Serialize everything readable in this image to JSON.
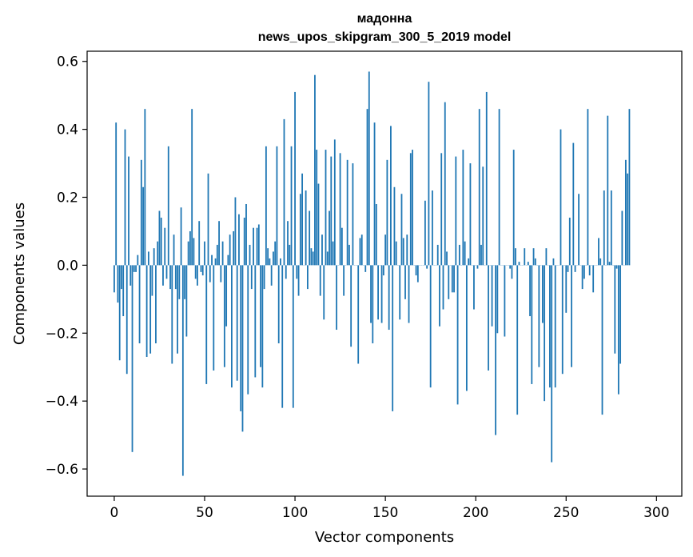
{
  "chart_data": {
    "type": "bar",
    "title": "мадонна",
    "subtitle": "news_upos_skipgram_300_5_2019 model",
    "xlabel": "Vector components",
    "ylabel": "Components values",
    "xlim": [
      -15,
      314
    ],
    "ylim": [
      -0.68,
      0.63
    ],
    "xticks": [
      0,
      50,
      100,
      150,
      200,
      250,
      300
    ],
    "yticks": [
      -0.6,
      -0.4,
      -0.2,
      0.0,
      0.2,
      0.4,
      0.6
    ],
    "xtick_labels": [
      "0",
      "50",
      "100",
      "150",
      "200",
      "250",
      "300"
    ],
    "ytick_labels": [
      "−0.6",
      "−0.4",
      "−0.2",
      "0.0",
      "0.2",
      "0.4",
      "0.6"
    ],
    "bar_color": "#1f77b4",
    "grid": false,
    "legend": "none",
    "values": [
      -0.08,
      0.42,
      -0.11,
      -0.28,
      -0.07,
      -0.15,
      0.4,
      -0.32,
      0.32,
      -0.06,
      -0.55,
      -0.02,
      -0.02,
      0.03,
      -0.23,
      0.31,
      0.23,
      0.46,
      -0.27,
      0.04,
      -0.26,
      -0.09,
      0.05,
      -0.23,
      0.07,
      0.16,
      0.14,
      -0.06,
      0.11,
      -0.04,
      0.35,
      -0.07,
      -0.29,
      0.09,
      -0.07,
      -0.26,
      -0.1,
      0.17,
      -0.62,
      -0.1,
      -0.21,
      0.07,
      0.1,
      0.46,
      0.08,
      -0.04,
      -0.06,
      0.13,
      -0.02,
      -0.03,
      0.07,
      -0.35,
      0.27,
      -0.05,
      0.03,
      -0.31,
      0.02,
      0.06,
      0.13,
      -0.05,
      0.07,
      -0.3,
      -0.18,
      0.03,
      0.09,
      -0.36,
      0.1,
      0.2,
      -0.34,
      0.15,
      -0.43,
      -0.49,
      0.14,
      0.18,
      -0.38,
      0.06,
      -0.07,
      0.11,
      -0.33,
      0.11,
      0.12,
      -0.3,
      -0.36,
      -0.07,
      0.35,
      0.05,
      0.02,
      -0.06,
      0.04,
      0.07,
      0.35,
      -0.23,
      0.02,
      -0.42,
      0.43,
      -0.04,
      0.13,
      0.06,
      0.35,
      -0.42,
      0.51,
      -0.04,
      -0.09,
      0.21,
      0.27,
      0.0,
      0.22,
      -0.07,
      0.16,
      0.05,
      0.04,
      0.56,
      0.34,
      0.24,
      -0.09,
      0.09,
      -0.16,
      0.34,
      0.04,
      0.16,
      0.32,
      0.07,
      0.37,
      -0.19,
      0.0,
      0.33,
      0.11,
      -0.09,
      0.0,
      0.31,
      0.06,
      -0.24,
      0.3,
      0.0,
      0.0,
      -0.29,
      0.08,
      0.09,
      0.0,
      -0.02,
      0.46,
      0.57,
      -0.17,
      -0.23,
      0.42,
      0.18,
      -0.16,
      0.0,
      -0.17,
      -0.03,
      0.09,
      0.31,
      -0.19,
      0.41,
      -0.43,
      0.23,
      0.07,
      0.0,
      -0.16,
      0.21,
      0.08,
      -0.1,
      0.09,
      -0.17,
      0.33,
      0.34,
      0.0,
      -0.03,
      -0.05,
      0.0,
      0.0,
      0.0,
      0.19,
      -0.01,
      0.54,
      -0.36,
      0.22,
      0.0,
      0.0,
      0.06,
      -0.18,
      0.33,
      -0.13,
      0.48,
      0.04,
      -0.1,
      0.0,
      -0.08,
      -0.08,
      0.32,
      -0.41,
      0.06,
      0.0,
      0.34,
      0.07,
      -0.37,
      0.02,
      0.3,
      0.0,
      -0.13,
      0.0,
      -0.01,
      0.46,
      0.06,
      0.29,
      0.0,
      0.51,
      -0.31,
      0.0,
      -0.18,
      0.0,
      -0.5,
      -0.2,
      0.46,
      0.0,
      0.0,
      -0.21,
      0.0,
      0.0,
      -0.01,
      -0.04,
      0.34,
      0.05,
      -0.44,
      0.01,
      0.0,
      0.0,
      0.05,
      0.0,
      0.01,
      -0.15,
      -0.35,
      0.05,
      0.02,
      0.0,
      -0.3,
      0.0,
      -0.17,
      -0.4,
      0.05,
      0.0,
      -0.36,
      -0.58,
      0.02,
      -0.36,
      0.0,
      0.0,
      0.4,
      -0.32,
      0.0,
      -0.14,
      -0.02,
      0.14,
      -0.3,
      0.36,
      -0.02,
      0.0,
      0.21,
      0.0,
      -0.07,
      -0.04,
      0.0,
      0.46,
      -0.03,
      0.0,
      -0.08,
      0.0,
      0.0,
      0.08,
      0.02,
      -0.44,
      0.22,
      0.0,
      0.44,
      0.01,
      0.22,
      0.0,
      -0.26,
      -0.01,
      -0.38,
      -0.29,
      0.16,
      0.0,
      0.31,
      0.27,
      0.46
    ]
  }
}
